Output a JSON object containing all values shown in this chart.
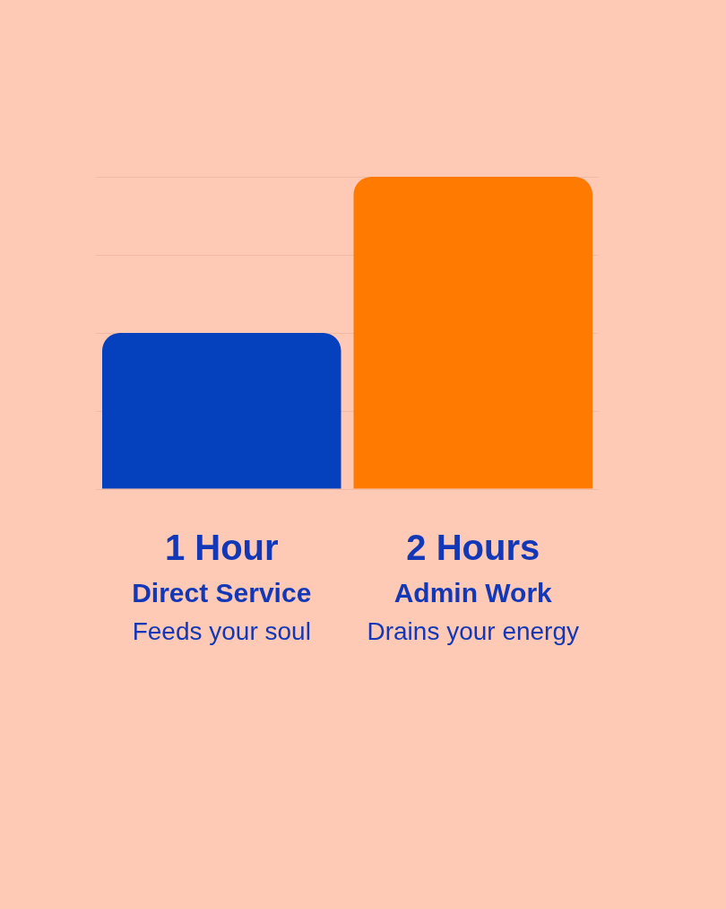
{
  "chart_data": {
    "type": "bar",
    "categories": [
      "Direct Service",
      "Admin Work"
    ],
    "values": [
      1,
      2
    ],
    "value_labels": [
      "1 Hour",
      "2 Hours"
    ],
    "colors": [
      "#0540bd",
      "#ff7a00"
    ],
    "ylim": [
      0,
      2
    ],
    "yticks": [
      {
        "value": 0,
        "label": null
      },
      {
        "value": 0.5,
        "label": null
      },
      {
        "value": 1,
        "label": null
      },
      {
        "value": 1.5,
        "label": null
      },
      {
        "value": 2,
        "label": null
      }
    ],
    "tick_labels": "x",
    "grid": "y",
    "legend": false,
    "annotations": [
      "Feeds your soul",
      "Drains your energy"
    ]
  }
}
